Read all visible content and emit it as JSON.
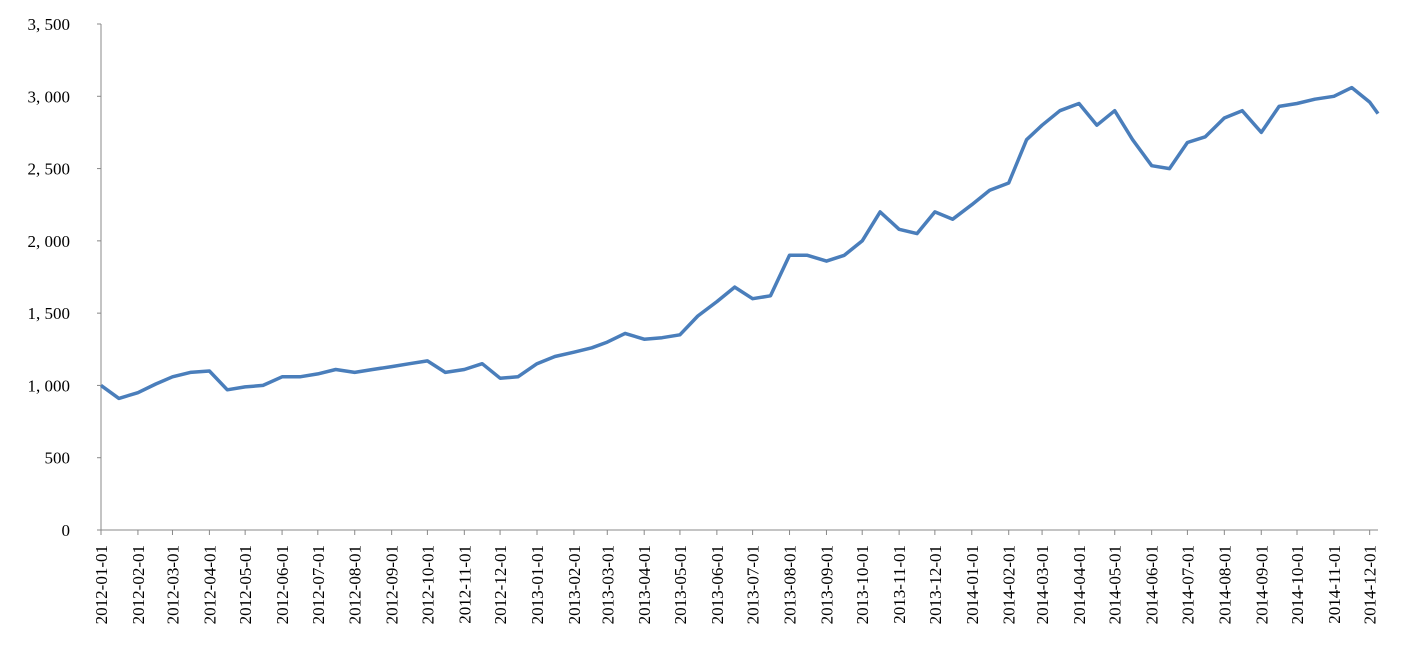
{
  "chart_data": {
    "type": "line",
    "x": [
      "2012-01-01",
      "2012-01-16",
      "2012-02-01",
      "2012-02-16",
      "2012-03-01",
      "2012-03-16",
      "2012-04-01",
      "2012-04-16",
      "2012-05-01",
      "2012-05-16",
      "2012-06-01",
      "2012-06-16",
      "2012-07-01",
      "2012-07-16",
      "2012-08-01",
      "2012-08-16",
      "2012-09-01",
      "2012-09-16",
      "2012-10-01",
      "2012-10-16",
      "2012-11-01",
      "2012-11-16",
      "2012-12-01",
      "2012-12-16",
      "2013-01-01",
      "2013-01-16",
      "2013-02-01",
      "2013-02-16",
      "2013-03-01",
      "2013-03-16",
      "2013-04-01",
      "2013-04-16",
      "2013-05-01",
      "2013-05-16",
      "2013-06-01",
      "2013-06-16",
      "2013-07-01",
      "2013-07-16",
      "2013-08-01",
      "2013-08-16",
      "2013-09-01",
      "2013-09-16",
      "2013-10-01",
      "2013-10-16",
      "2013-11-01",
      "2013-11-16",
      "2013-12-01",
      "2013-12-16",
      "2014-01-01",
      "2014-01-16",
      "2014-02-01",
      "2014-02-16",
      "2014-03-01",
      "2014-03-16",
      "2014-04-01",
      "2014-04-16",
      "2014-05-01",
      "2014-05-16",
      "2014-06-01",
      "2014-06-16",
      "2014-07-01",
      "2014-07-16",
      "2014-08-01",
      "2014-08-16",
      "2014-09-01",
      "2014-09-16",
      "2014-10-01",
      "2014-10-16",
      "2014-11-01",
      "2014-11-16",
      "2014-12-01",
      "2014-12-08"
    ],
    "series": [
      {
        "color": "#4a7ebb",
        "values": [
          1000,
          910,
          950,
          1010,
          1060,
          1090,
          1100,
          970,
          990,
          1000,
          1060,
          1060,
          1080,
          1110,
          1090,
          1110,
          1130,
          1150,
          1170,
          1090,
          1110,
          1150,
          1050,
          1060,
          1150,
          1200,
          1230,
          1260,
          1300,
          1360,
          1320,
          1330,
          1350,
          1480,
          1580,
          1680,
          1600,
          1620,
          1900,
          1900,
          1860,
          1900,
          2000,
          2200,
          2080,
          2050,
          2200,
          2150,
          2250,
          2350,
          2400,
          2700,
          2800,
          2900,
          2950,
          2800,
          2900,
          2700,
          2520,
          2500,
          2680,
          2720,
          2850,
          2900,
          2750,
          2930,
          2950,
          2980,
          3000,
          3060,
          2960,
          2880
        ]
      }
    ],
    "xlim": [
      "2012-01-01",
      "2014-12-08"
    ],
    "xticks": [
      "2012-01-01",
      "2012-02-01",
      "2012-03-01",
      "2012-04-01",
      "2012-05-01",
      "2012-06-01",
      "2012-07-01",
      "2012-08-01",
      "2012-09-01",
      "2012-10-01",
      "2012-11-01",
      "2012-12-01",
      "2013-01-01",
      "2013-02-01",
      "2013-03-01",
      "2013-04-01",
      "2013-05-01",
      "2013-06-01",
      "2013-07-01",
      "2013-08-01",
      "2013-09-01",
      "2013-10-01",
      "2013-11-01",
      "2013-12-01",
      "2014-01-01",
      "2014-02-01",
      "2014-03-01",
      "2014-04-01",
      "2014-05-01",
      "2014-06-01",
      "2014-07-01",
      "2014-08-01",
      "2014-09-01",
      "2014-10-01",
      "2014-11-01",
      "2014-12-01"
    ],
    "ylim": [
      0,
      3500
    ],
    "yticks": [
      0,
      500,
      {
        "value": 1000,
        "label": "1, 000"
      },
      {
        "value": 1500,
        "label": "1, 500"
      },
      {
        "value": 2000,
        "label": "2, 000"
      },
      {
        "value": 2500,
        "label": "2, 500"
      },
      {
        "value": 3000,
        "label": "3, 000"
      },
      {
        "value": 3500,
        "label": "3, 500"
      }
    ],
    "grid": false
  }
}
